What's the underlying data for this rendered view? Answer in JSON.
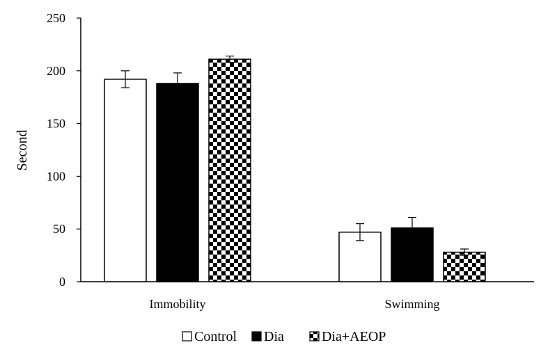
{
  "chart_data": {
    "type": "bar",
    "ylabel": "Second",
    "xlabel": "",
    "ylim": [
      0,
      250
    ],
    "yticks": [
      0,
      50,
      100,
      150,
      200,
      250
    ],
    "categories": [
      "Immobility",
      "Swimming"
    ],
    "series": [
      {
        "name": "Control",
        "values": [
          192,
          47
        ],
        "errors": [
          8,
          8
        ],
        "fill": "white"
      },
      {
        "name": "Dia",
        "values": [
          188,
          51
        ],
        "errors": [
          10,
          10
        ],
        "fill": "black"
      },
      {
        "name": "Dia+AEOP",
        "values": [
          211,
          28
        ],
        "errors": [
          3,
          3
        ],
        "fill": "checker"
      }
    ],
    "grid": false,
    "legend_position": "bottom",
    "colors": {
      "stroke": "#000000",
      "white": "#ffffff",
      "black": "#000000"
    }
  }
}
